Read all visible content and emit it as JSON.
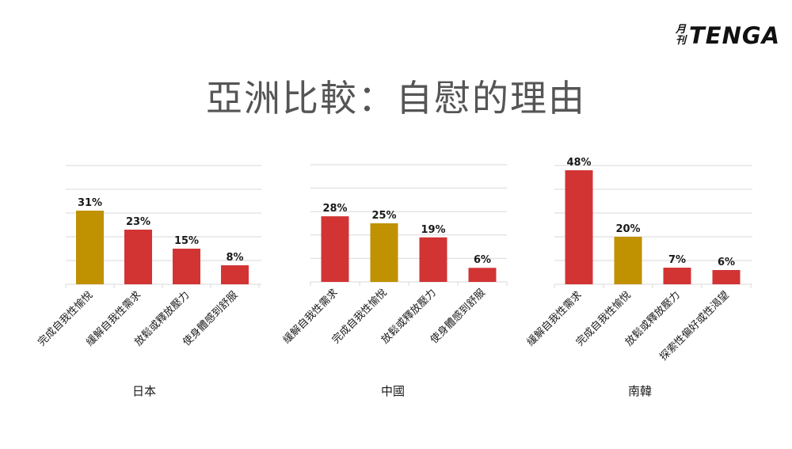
{
  "logo": {
    "small_top": "月",
    "small_bottom": "刊",
    "main": "TENGA"
  },
  "title": "亞洲比較：自慰的理由",
  "colors": {
    "highlight": "#C09100",
    "bar": "#D23434",
    "grid": "#D9D9D9"
  },
  "chart_data": [
    {
      "type": "bar",
      "country": "日本",
      "categories": [
        "完成自我性愉悅",
        "緩解自我性需求",
        "放鬆或釋放壓力",
        "使身體感到舒服"
      ],
      "values": [
        31,
        23,
        15,
        8
      ],
      "labels": [
        "31%",
        "23%",
        "15%",
        "8%"
      ],
      "highlight_index": 0,
      "ylim": [
        0,
        50
      ]
    },
    {
      "type": "bar",
      "country": "中國",
      "categories": [
        "緩解自我性需求",
        "完成自我性愉悅",
        "放鬆或釋放壓力",
        "使身體感到舒服"
      ],
      "values": [
        28,
        25,
        19,
        6
      ],
      "labels": [
        "28%",
        "25%",
        "19%",
        "6%"
      ],
      "highlight_index": 1,
      "ylim": [
        0,
        50
      ]
    },
    {
      "type": "bar",
      "country": "南韓",
      "categories": [
        "緩解自我性需求",
        "完成自我性愉悅",
        "放鬆或釋放壓力",
        "探索性偏好或性渴望"
      ],
      "values": [
        48,
        20,
        7,
        6
      ],
      "labels": [
        "48%",
        "20%",
        "7%",
        "6%"
      ],
      "highlight_index": 1,
      "ylim": [
        0,
        50
      ]
    }
  ]
}
